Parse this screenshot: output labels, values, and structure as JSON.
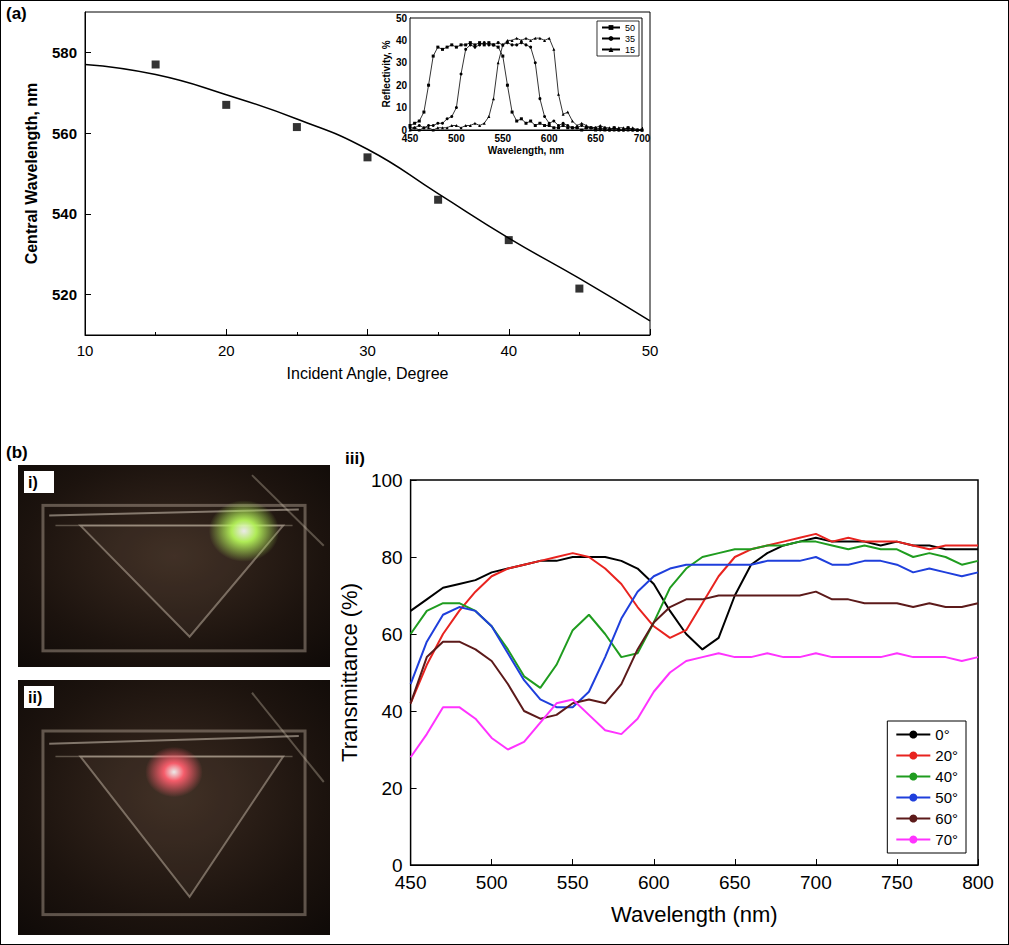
{
  "chart_data": [
    {
      "panel": "(a)",
      "type": "scatter",
      "xlabel": "Incident Angle, Degree",
      "ylabel": "Central Wavelength, nm",
      "xlim": [
        10,
        50
      ],
      "xticks": [
        10,
        20,
        30,
        40,
        50
      ],
      "ylim": [
        510,
        590
      ],
      "yticks": [
        520,
        540,
        560,
        580
      ],
      "grid": false,
      "series": [
        {
          "type": "scatter",
          "marker": "square",
          "color": "#000000",
          "x": [
            15,
            20,
            25,
            30,
            35,
            40,
            45
          ],
          "values": [
            577,
            567,
            561.5,
            554,
            543.5,
            533.5,
            521.5
          ]
        },
        {
          "type": "line",
          "line_style": "solid",
          "color": "#000000",
          "x": [
            10,
            15,
            20,
            25,
            30,
            35,
            40,
            45,
            50
          ],
          "values": [
            577,
            574.5,
            569.5,
            563.5,
            556,
            545,
            534,
            524,
            513.5
          ]
        }
      ]
    },
    {
      "type": "line",
      "xlabel": "Wavelength, nm",
      "ylabel": "Reflectivity, %",
      "xlim": [
        450,
        700
      ],
      "xticks": [
        450,
        500,
        550,
        600,
        650,
        700
      ],
      "ylim": [
        0,
        50
      ],
      "yticks": [
        0,
        10,
        20,
        30,
        40,
        50
      ],
      "grid": false,
      "legend": "top-right",
      "x": [
        450,
        455,
        460,
        465,
        470,
        475,
        480,
        485,
        490,
        495,
        500,
        505,
        510,
        515,
        520,
        525,
        530,
        535,
        540,
        545,
        550,
        555,
        560,
        565,
        570,
        575,
        580,
        585,
        590,
        595,
        600,
        605,
        610,
        615,
        620,
        625,
        630,
        635,
        640,
        645,
        650,
        655,
        660,
        665,
        670,
        675,
        680,
        685,
        690,
        695,
        700
      ],
      "series": [
        {
          "name": "50",
          "marker": "square",
          "color": "#000000",
          "values": [
            2,
            3,
            4,
            8,
            20,
            33,
            37,
            36,
            37,
            38,
            37,
            38,
            38,
            39,
            38,
            39,
            38,
            39,
            38,
            37,
            33,
            20,
            8,
            4,
            5,
            3,
            4,
            2,
            3,
            2,
            2,
            1,
            1,
            2,
            1,
            1,
            1,
            0,
            1,
            1,
            0,
            1,
            0,
            0,
            1,
            0,
            0,
            1,
            0,
            0,
            0
          ]
        },
        {
          "name": "35",
          "marker": "circle",
          "color": "#000000",
          "values": [
            1,
            1,
            2,
            1,
            2,
            2,
            3,
            3,
            5,
            6,
            10,
            25,
            36,
            38,
            37,
            38,
            39,
            38,
            38,
            39,
            38,
            39,
            38,
            38,
            39,
            38,
            37,
            30,
            14,
            6,
            3,
            4,
            2,
            3,
            2,
            1,
            1,
            2,
            1,
            1,
            1,
            0,
            1,
            0,
            1,
            0,
            0,
            1,
            0,
            0,
            0
          ]
        },
        {
          "name": "15",
          "marker": "triangle",
          "color": "#000000",
          "values": [
            0,
            1,
            0,
            1,
            1,
            0,
            1,
            1,
            1,
            2,
            2,
            1,
            2,
            2,
            3,
            2,
            3,
            6,
            14,
            30,
            38,
            40,
            40,
            41,
            40,
            41,
            40,
            41,
            41,
            40,
            41,
            36,
            16,
            7,
            8,
            4,
            2,
            3,
            2,
            1,
            1,
            2,
            1,
            1,
            0,
            1,
            1,
            0,
            1,
            0,
            0
          ]
        }
      ]
    },
    {
      "panel": "iii)",
      "type": "line",
      "xlabel": "Wavelength (nm)",
      "ylabel": "Transmittance (%)",
      "xlim": [
        450,
        800
      ],
      "xticks": [
        450,
        500,
        550,
        600,
        650,
        700,
        750,
        800
      ],
      "ylim": [
        0,
        100
      ],
      "yticks": [
        0,
        20,
        40,
        60,
        80,
        100
      ],
      "grid": false,
      "legend": "bottom-right",
      "x": [
        450,
        460,
        470,
        480,
        490,
        500,
        510,
        520,
        530,
        540,
        550,
        560,
        570,
        580,
        590,
        600,
        610,
        620,
        630,
        640,
        650,
        660,
        670,
        680,
        690,
        700,
        710,
        720,
        730,
        740,
        750,
        760,
        770,
        780,
        790,
        800
      ],
      "series": [
        {
          "name": "0°",
          "color": "#000000",
          "values": [
            66,
            69,
            72,
            73,
            74,
            76,
            77,
            78,
            79,
            79,
            80,
            80,
            80,
            79,
            77,
            73,
            66,
            60,
            56,
            59,
            70,
            78,
            81,
            83,
            84,
            85,
            84,
            84,
            84,
            83,
            84,
            83,
            83,
            82,
            82,
            82
          ]
        },
        {
          "name": "20°",
          "color": "#e8231f",
          "values": [
            42,
            52,
            60,
            66,
            71,
            75,
            77,
            78,
            79,
            80,
            81,
            80,
            77,
            73,
            67,
            62,
            59,
            61,
            68,
            75,
            80,
            82,
            83,
            84,
            85,
            86,
            84,
            85,
            84,
            84,
            84,
            83,
            82,
            83,
            83,
            83
          ]
        },
        {
          "name": "40°",
          "color": "#1f9c1f",
          "values": [
            60,
            66,
            68,
            68,
            66,
            62,
            56,
            49,
            46,
            52,
            61,
            65,
            60,
            54,
            55,
            63,
            72,
            77,
            80,
            81,
            82,
            82,
            83,
            83,
            84,
            84,
            83,
            82,
            83,
            82,
            82,
            80,
            81,
            80,
            78,
            79
          ]
        },
        {
          "name": "50°",
          "color": "#1f3fdc",
          "values": [
            47,
            58,
            65,
            67,
            66,
            62,
            55,
            48,
            43,
            41,
            41,
            45,
            54,
            64,
            71,
            75,
            77,
            78,
            78,
            78,
            78,
            78,
            79,
            79,
            79,
            80,
            78,
            78,
            79,
            79,
            78,
            76,
            77,
            76,
            75,
            76
          ]
        },
        {
          "name": "60°",
          "color": "#5c1a1a",
          "values": [
            42,
            54,
            58,
            58,
            56,
            53,
            47,
            40,
            38,
            39,
            42,
            43,
            42,
            47,
            56,
            63,
            67,
            69,
            69,
            70,
            70,
            70,
            70,
            70,
            70,
            71,
            69,
            69,
            68,
            68,
            68,
            67,
            68,
            67,
            67,
            68
          ]
        },
        {
          "name": "70°",
          "color": "#ff33ff",
          "values": [
            28,
            34,
            41,
            41,
            38,
            33,
            30,
            32,
            37,
            42,
            43,
            39,
            35,
            34,
            38,
            45,
            50,
            53,
            54,
            55,
            54,
            54,
            55,
            54,
            54,
            55,
            54,
            54,
            54,
            54,
            55,
            54,
            54,
            54,
            53,
            54
          ]
        }
      ]
    }
  ],
  "group": "(b)",
  "photos": [
    {
      "label": "i)",
      "color": "#b6f55a"
    },
    {
      "label": "ii)",
      "color": "#ff5f6e"
    }
  ]
}
